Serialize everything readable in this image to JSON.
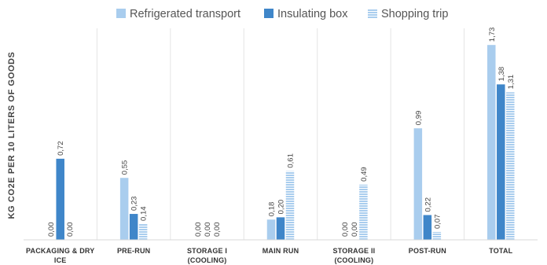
{
  "chart_data": {
    "type": "bar",
    "title": "",
    "xlabel": "",
    "ylabel": "KG CO2E PER 10 LITERS OF GOODS",
    "categories": [
      [
        "PACKAGING & DRY",
        "ICE"
      ],
      [
        "PRE-RUN"
      ],
      [
        "STORAGE I",
        "(COOLING)"
      ],
      [
        "MAIN RUN"
      ],
      [
        "STORAGE II",
        "(COOLING)"
      ],
      [
        "POST-RUN"
      ],
      [
        "TOTAL"
      ]
    ],
    "series": [
      {
        "name": "Refrigerated transport",
        "values": [
          0.0,
          0.55,
          0.0,
          0.18,
          0.0,
          0.99,
          1.73
        ],
        "labels": [
          "0,00",
          "0,55",
          "0,00",
          "0,18",
          "0,00",
          "0,99",
          "1,73"
        ],
        "color": "#a9cdee",
        "pattern": "solid"
      },
      {
        "name": "Insulating box",
        "values": [
          0.72,
          0.23,
          0.0,
          0.2,
          0.0,
          0.22,
          1.38
        ],
        "labels": [
          "0,72",
          "0,23",
          "0,00",
          "0,20",
          "0,00",
          "0,22",
          "1,38"
        ],
        "color": "#3f86c9",
        "pattern": "solid"
      },
      {
        "name": "Shopping trip",
        "values": [
          0.0,
          0.14,
          0.0,
          0.61,
          0.49,
          0.07,
          1.31
        ],
        "labels": [
          "0,00",
          "0,14",
          "0,00",
          "0,61",
          "0,49",
          "0,07",
          "1,31"
        ],
        "color": "#a9cdee",
        "pattern": "horizontal-stripes"
      }
    ],
    "ylim": [
      0,
      1.85
    ],
    "grid": false,
    "legend_position": "top"
  }
}
